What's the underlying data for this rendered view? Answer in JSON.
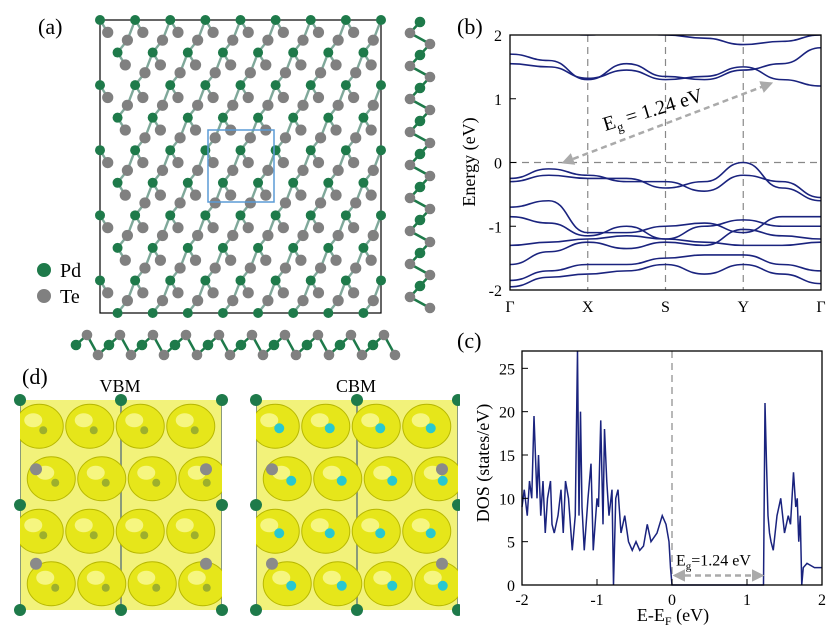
{
  "figure": {
    "panel_a": {
      "label": "(a)",
      "legend": [
        {
          "name": "Pd",
          "color": "#1e7a4a"
        },
        {
          "name": "Te",
          "color": "#808080"
        }
      ]
    },
    "panel_d": {
      "label": "(d)",
      "left_title": "VBM",
      "right_title": "CBM",
      "isosurface_color": "#e6e61a",
      "inner_color": "#28c8d0"
    }
  },
  "chart_data": [
    {
      "id": "b",
      "label": "(b)",
      "type": "line",
      "title": "",
      "ylabel": "Energy (eV)",
      "xlabel": "",
      "ylim": [
        -2,
        2
      ],
      "yticks": [
        -2,
        -1,
        0,
        1,
        2
      ],
      "kpoints": [
        "Γ",
        "X",
        "S",
        "Y",
        "Γ"
      ],
      "kpos": [
        0,
        1,
        2,
        3,
        4
      ],
      "annotation": {
        "text_main": "E",
        "text_sub": "g",
        "text_rest": " = 1.24 eV",
        "from": [
          1.0,
          0.0
        ],
        "to": [
          3.2,
          1.24
        ]
      },
      "line_color": "#1a237e",
      "series": [
        {
          "name": "c1",
          "values": [
            1.7,
            1.6,
            1.3,
            1.55,
            1.35,
            1.3,
            1.45,
            1.55,
            1.8
          ]
        },
        {
          "name": "c2",
          "values": [
            1.55,
            1.5,
            1.32,
            1.45,
            1.3,
            1.35,
            1.5,
            1.3,
            1.2
          ]
        },
        {
          "name": "c3",
          "values": [
            2.1,
            2.05,
            2.0,
            2.05,
            2.0,
            1.95,
            1.85,
            1.9,
            2.0
          ]
        },
        {
          "name": "v1",
          "values": [
            -0.25,
            -0.1,
            -0.2,
            -0.3,
            -0.3,
            -0.45,
            -0.2,
            -0.3,
            -0.55
          ]
        },
        {
          "name": "v2",
          "values": [
            -0.3,
            -0.2,
            -0.25,
            -0.25,
            -0.4,
            -0.3,
            0.0,
            -0.4,
            -0.6
          ]
        },
        {
          "name": "v3",
          "values": [
            -0.85,
            -0.95,
            -1.15,
            -1.0,
            -1.2,
            -1.0,
            -0.9,
            -1.0,
            -1.0
          ]
        },
        {
          "name": "v4",
          "values": [
            -0.7,
            -0.6,
            -1.1,
            -1.1,
            -1.0,
            -0.95,
            -1.1,
            -0.85,
            -0.85
          ]
        },
        {
          "name": "v5",
          "values": [
            -1.3,
            -1.25,
            -1.2,
            -1.15,
            -1.2,
            -1.25,
            -1.3,
            -1.3,
            -1.25
          ]
        },
        {
          "name": "v6",
          "values": [
            -1.6,
            -1.4,
            -1.25,
            -1.35,
            -1.25,
            -1.3,
            -1.05,
            -1.15,
            -1.2
          ]
        },
        {
          "name": "v7",
          "values": [
            -1.85,
            -1.7,
            -1.6,
            -1.6,
            -1.5,
            -1.45,
            -1.45,
            -1.6,
            -1.7
          ]
        },
        {
          "name": "v8",
          "values": [
            -1.95,
            -1.8,
            -1.75,
            -1.7,
            -1.6,
            -1.75,
            -1.6,
            -1.75,
            -1.9
          ]
        }
      ]
    },
    {
      "id": "c",
      "label": "(c)",
      "type": "line",
      "title": "",
      "xlabel_main": "E-E",
      "xlabel_sub": "F",
      "xlabel_rest": " (eV)",
      "ylabel": "DOS (states/eV)",
      "xlim": [
        -2,
        2
      ],
      "ylim": [
        0,
        27
      ],
      "xticks": [
        -2,
        -1,
        0,
        1,
        2
      ],
      "yticks": [
        0,
        5,
        10,
        15,
        20,
        25
      ],
      "annotation": {
        "text_main": "E",
        "text_sub": "g",
        "text_rest": "=1.24 eV",
        "from": [
          0.0,
          1.1
        ],
        "to": [
          1.24,
          1.1
        ]
      },
      "line_color": "#1a237e",
      "x": [
        -2.0,
        -1.97,
        -1.93,
        -1.9,
        -1.87,
        -1.84,
        -1.8,
        -1.78,
        -1.75,
        -1.72,
        -1.69,
        -1.66,
        -1.62,
        -1.6,
        -1.57,
        -1.52,
        -1.48,
        -1.45,
        -1.42,
        -1.38,
        -1.33,
        -1.29,
        -1.26,
        -1.24,
        -1.22,
        -1.2,
        -1.17,
        -1.12,
        -1.08,
        -1.05,
        -1.0,
        -0.98,
        -0.95,
        -0.92,
        -0.9,
        -0.87,
        -0.84,
        -0.8,
        -0.78,
        -0.75,
        -0.72,
        -0.68,
        -0.63,
        -0.58,
        -0.53,
        -0.48,
        -0.43,
        -0.38,
        -0.33,
        -0.28,
        -0.2,
        -0.13,
        -0.08,
        -0.04,
        -0.02,
        0.0,
        1.22,
        1.24,
        1.26,
        1.28,
        1.3,
        1.32,
        1.35,
        1.4,
        1.45,
        1.5,
        1.55,
        1.58,
        1.62,
        1.65,
        1.67,
        1.69,
        1.71,
        1.73,
        1.75,
        1.8,
        1.9,
        2.0
      ],
      "values": [
        9,
        11,
        8,
        12,
        10,
        19.5,
        10,
        15,
        8,
        12,
        6,
        10,
        12,
        7,
        6,
        8,
        11,
        6,
        12,
        10,
        4,
        8,
        27,
        8,
        20,
        9,
        4,
        10,
        14,
        4,
        10,
        9,
        19,
        7,
        18,
        12,
        8,
        11,
        0,
        10,
        11,
        6,
        8,
        5,
        4,
        5,
        4,
        4.5,
        7,
        5,
        6,
        8,
        7,
        5,
        2,
        0,
        0,
        21,
        14,
        8,
        6,
        5,
        4,
        8,
        10,
        6,
        8,
        7,
        13,
        9,
        10,
        5,
        8,
        0,
        2,
        2.5,
        2,
        2
      ]
    }
  ]
}
